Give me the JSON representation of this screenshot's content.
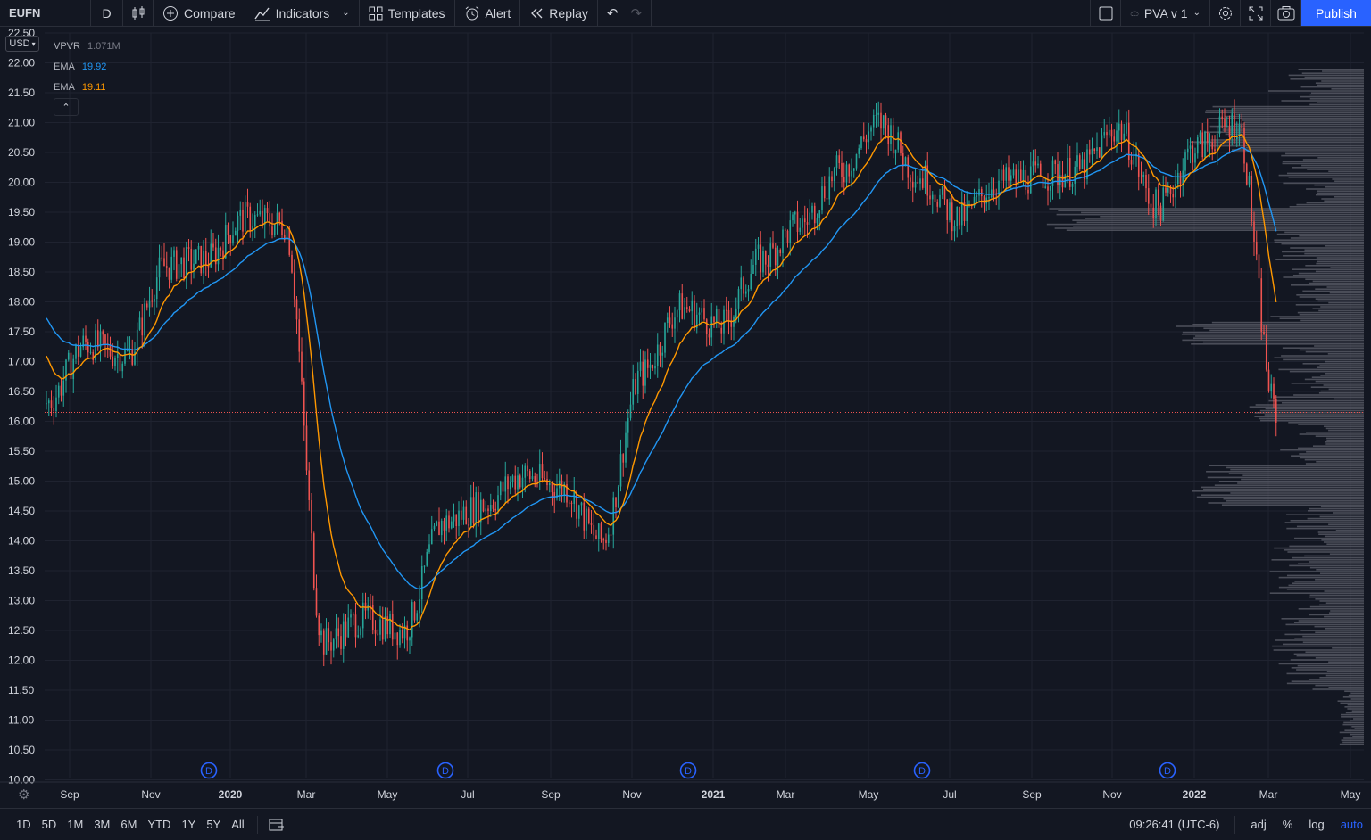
{
  "toolbar": {
    "symbol": "EUFN",
    "interval": "D",
    "compare_label": "Compare",
    "indicators_label": "Indicators",
    "templates_label": "Templates",
    "alert_label": "Alert",
    "replay_label": "Replay",
    "layout_name": "PVA v 1",
    "publish_label": "Publish"
  },
  "legend": {
    "currency": "USD",
    "vpvr_label": "VPVR",
    "vpvr_value": "1.071M",
    "ema1_label": "EMA",
    "ema1_value": "19.92",
    "ema2_label": "EMA",
    "ema2_value": "19.11"
  },
  "bottom": {
    "ranges": [
      "1D",
      "5D",
      "1M",
      "3M",
      "6M",
      "YTD",
      "1Y",
      "5Y",
      "All"
    ],
    "clock": "09:26:41 (UTC-6)",
    "adj": "adj",
    "percent": "%",
    "log": "log",
    "auto": "auto"
  },
  "colors": {
    "background": "#131722",
    "up": "#26a69a",
    "down": "#ef5350",
    "ema_fast": "#ff9800",
    "ema_slow": "#2196f3",
    "accent": "#2962ff"
  },
  "chart_data": {
    "type": "candlestick",
    "ylim": [
      10.0,
      22.5
    ],
    "y_ticks": [
      "22.50",
      "22.00",
      "21.50",
      "21.00",
      "20.50",
      "20.00",
      "19.50",
      "19.00",
      "18.50",
      "18.00",
      "17.50",
      "17.00",
      "16.50",
      "16.00",
      "15.50",
      "15.00",
      "14.50",
      "14.00",
      "13.50",
      "13.00",
      "12.50",
      "12.00",
      "11.50",
      "11.00",
      "10.50",
      "10.00"
    ],
    "x_ticks": [
      "Sep",
      "Nov",
      "2020",
      "Mar",
      "May",
      "Jul",
      "Sep",
      "Nov",
      "2021",
      "Mar",
      "May",
      "Jul",
      "Sep",
      "Nov",
      "2022",
      "Mar",
      "May"
    ],
    "dividend_markers": [
      "D",
      "D",
      "D",
      "D",
      "D"
    ],
    "current_price": 16.15,
    "price_path": [
      [
        "Aug 2019",
        16.3
      ],
      [
        "Sep 2019",
        17.3
      ],
      [
        "Oct 2019",
        17.1
      ],
      [
        "Nov 2019",
        18.6
      ],
      [
        "Dec 2019",
        18.7
      ],
      [
        "Jan 2020",
        19.4
      ],
      [
        "Feb 2020",
        19.3
      ],
      [
        "Mar 2020",
        12.3
      ],
      [
        "Apr 2020",
        12.7
      ],
      [
        "May 2020",
        12.5
      ],
      [
        "Jun 2020",
        14.3
      ],
      [
        "Jul 2020",
        14.6
      ],
      [
        "Aug 2020",
        15.1
      ],
      [
        "Sep 2020",
        14.9
      ],
      [
        "Oct 2020",
        14.0
      ],
      [
        "Nov 2020",
        16.8
      ],
      [
        "Dec 2020",
        17.9
      ],
      [
        "Jan 2021",
        17.6
      ],
      [
        "Feb 2021",
        18.7
      ],
      [
        "Mar 2021",
        19.3
      ],
      [
        "Apr 2021",
        20.2
      ],
      [
        "May 2021",
        21.0
      ],
      [
        "Jun 2021",
        20.1
      ],
      [
        "Jul 2021",
        19.4
      ],
      [
        "Aug 2021",
        20.0
      ],
      [
        "Sep 2021",
        20.1
      ],
      [
        "Oct 2021",
        20.2
      ],
      [
        "Nov 2021",
        20.9
      ],
      [
        "Dec 2021",
        19.6
      ],
      [
        "Jan 2022",
        20.6
      ],
      [
        "Feb 2022",
        21.0
      ],
      [
        "Mar 2022",
        16.15
      ]
    ]
  }
}
